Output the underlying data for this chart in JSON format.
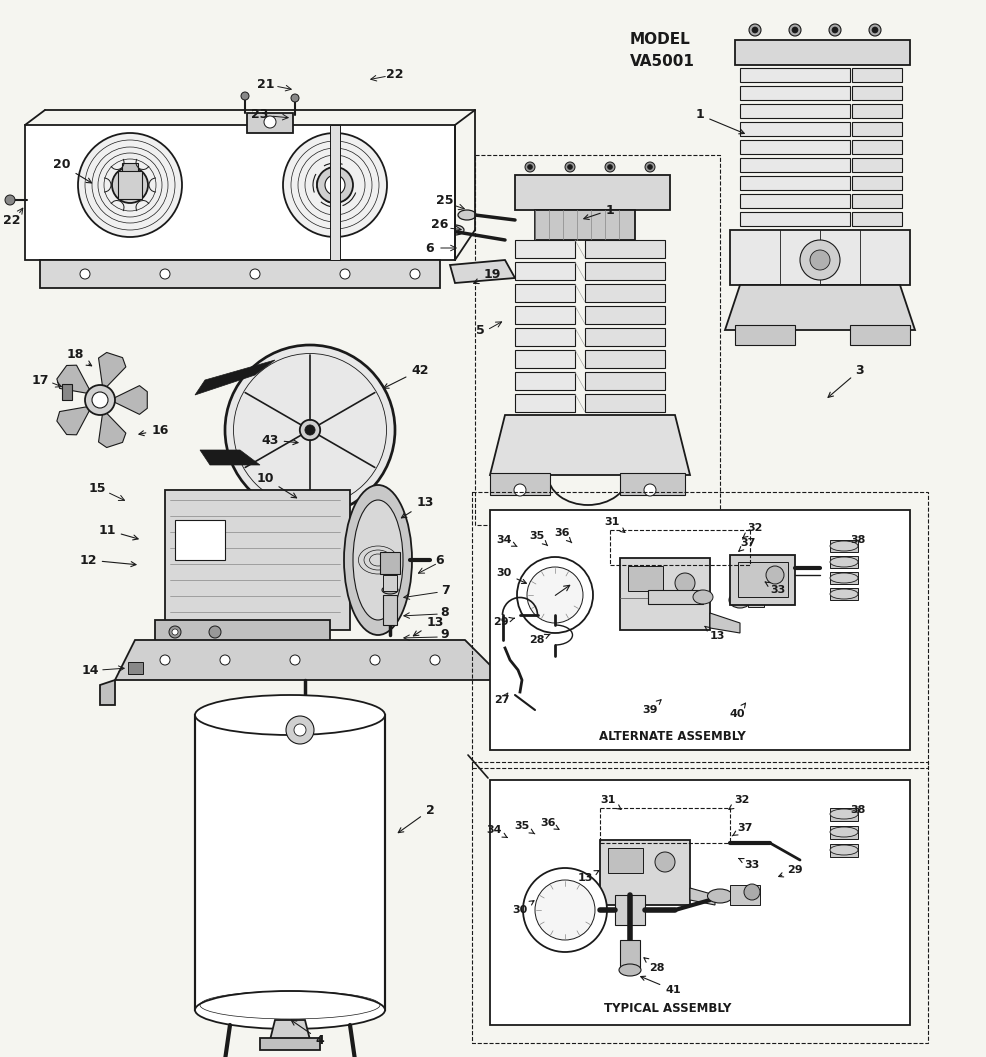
{
  "bg_color": "#f5f5f0",
  "lc": "#1a1a1a",
  "fig_width": 9.87,
  "fig_height": 10.57,
  "dpi": 100,
  "model_label": "MODEL\nVA5001",
  "label_fs": 9,
  "small_fs": 8
}
